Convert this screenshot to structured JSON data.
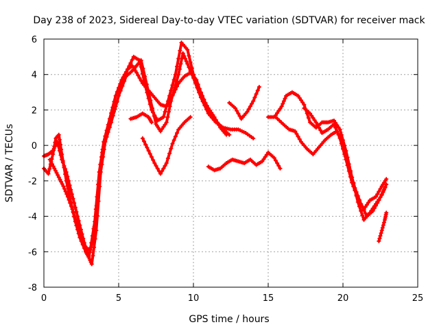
{
  "chart_data": {
    "type": "scatter",
    "title": "Day 238 of 2023, Sidereal Day-to-day VTEC variation (SDTVAR) for receiver mack",
    "xlabel": "GPS time / hours",
    "ylabel": "SDTVAR / TECUs",
    "xlim": [
      0,
      25
    ],
    "ylim": [
      -8,
      6
    ],
    "x_ticks": [
      0,
      5,
      10,
      15,
      20,
      25
    ],
    "y_ticks": [
      -8,
      -6,
      -4,
      -2,
      0,
      2,
      4,
      6
    ],
    "x_tick_labels": [
      "0",
      "5",
      "10",
      "15",
      "20",
      "25"
    ],
    "y_tick_labels": [
      "-8",
      "-6",
      "-4",
      "-2",
      "0",
      "2",
      "4",
      "6"
    ],
    "grid": true,
    "marker": "plus",
    "color": "#ff0000",
    "series": [
      {
        "x": [
          0.0,
          0.3,
          0.6,
          0.9,
          1.2,
          1.5,
          1.8,
          2.1,
          2.4,
          2.7,
          3.0,
          3.2,
          3.5,
          3.8,
          4.1,
          4.5,
          5.0,
          5.5,
          5.9,
          6.2,
          6.5,
          7.0,
          7.5,
          7.8,
          8.2,
          8.5,
          9.0,
          9.3,
          9.6,
          10.0,
          10.5,
          11.0,
          11.5,
          12.0,
          12.5,
          13.0,
          13.5,
          14.0
        ],
        "y": [
          -0.6,
          -0.5,
          -0.3,
          0.2,
          -0.8,
          -1.5,
          -2.5,
          -3.5,
          -4.5,
          -5.5,
          -6.3,
          -6.7,
          -4.8,
          -1.5,
          0.2,
          1.3,
          2.8,
          3.9,
          4.2,
          4.5,
          4.8,
          3.0,
          1.2,
          0.8,
          1.3,
          2.5,
          4.0,
          5.2,
          4.6,
          3.8,
          2.7,
          1.8,
          1.3,
          1.0,
          0.9,
          0.9,
          0.7,
          0.4
        ]
      },
      {
        "x": [
          0.0,
          0.3,
          0.6,
          0.8,
          1.0,
          1.2,
          1.5,
          1.8,
          2.1,
          2.4,
          2.8,
          3.0,
          3.3,
          3.6,
          3.9,
          4.3,
          4.8,
          5.2,
          5.6,
          6.0,
          6.4,
          6.8,
          7.2,
          7.6,
          8.0,
          8.4,
          8.8,
          9.2,
          9.6,
          10.0,
          10.4,
          10.8,
          11.2,
          11.6,
          12.0,
          12.4
        ],
        "y": [
          -1.3,
          -1.6,
          -0.5,
          0.4,
          0.6,
          -0.5,
          -2.0,
          -3.2,
          -4.3,
          -5.2,
          -6.0,
          -6.3,
          -5.2,
          -2.8,
          -0.4,
          1.0,
          2.2,
          3.4,
          4.3,
          5.0,
          4.8,
          3.3,
          2.0,
          1.4,
          1.6,
          2.8,
          4.0,
          5.8,
          5.4,
          4.0,
          3.2,
          2.4,
          1.7,
          1.3,
          0.9,
          0.6
        ]
      },
      {
        "x": [
          0.4,
          0.7,
          1.0,
          1.3,
          1.6,
          1.9,
          2.2,
          2.5,
          2.8,
          3.1,
          3.4,
          3.7,
          4.0,
          4.4,
          4.8,
          5.2,
          5.6,
          5.9,
          6.2,
          6.6,
          7.0,
          7.4,
          7.8,
          8.2,
          8.6,
          9.0,
          9.4,
          9.8,
          10.2,
          10.6,
          11.0,
          11.4,
          11.8,
          12.2
        ],
        "y": [
          -0.8,
          -1.3,
          -1.8,
          -2.3,
          -2.9,
          -3.6,
          -4.4,
          -5.2,
          -5.8,
          -5.9,
          -4.3,
          -1.5,
          0.2,
          1.5,
          2.8,
          3.7,
          4.3,
          4.5,
          4.1,
          3.5,
          3.1,
          2.7,
          2.3,
          2.2,
          2.8,
          3.5,
          3.9,
          4.1,
          3.7,
          2.7,
          2.1,
          1.6,
          1.0,
          0.6
        ]
      },
      {
        "x": [
          5.8,
          6.2,
          6.6,
          7.0,
          7.2
        ],
        "y": [
          1.5,
          1.6,
          1.8,
          1.6,
          1.3
        ]
      },
      {
        "x": [
          6.6,
          7.0,
          7.4,
          7.8,
          8.2,
          8.6,
          9.0,
          9.4,
          9.8
        ],
        "y": [
          0.4,
          -0.3,
          -1.0,
          -1.6,
          -1.0,
          0.1,
          0.9,
          1.3,
          1.6
        ]
      },
      {
        "x": [
          11.0,
          11.4,
          11.8,
          12.2,
          12.6,
          13.0,
          13.4,
          13.8,
          14.2,
          14.6,
          15.0,
          15.4,
          15.8
        ],
        "y": [
          -1.2,
          -1.4,
          -1.3,
          -1.0,
          -0.8,
          -0.9,
          -1.0,
          -0.8,
          -1.1,
          -0.9,
          -0.4,
          -0.7,
          -1.3
        ]
      },
      {
        "x": [
          12.4,
          12.8,
          13.2,
          13.6,
          14.0,
          14.4
        ],
        "y": [
          2.4,
          2.1,
          1.5,
          1.9,
          2.5,
          3.3
        ]
      },
      {
        "x": [
          15.0,
          15.5,
          16.0,
          16.4,
          16.8,
          17.2,
          17.6,
          18.0,
          18.4,
          18.8,
          19.2,
          19.6,
          20.0,
          20.4,
          20.8,
          21.2,
          21.6,
          22.0,
          22.4,
          22.8
        ],
        "y": [
          1.6,
          1.6,
          1.2,
          0.9,
          0.8,
          0.2,
          -0.2,
          -0.5,
          -0.1,
          0.3,
          0.6,
          0.8,
          0.1,
          -1.2,
          -2.4,
          -3.3,
          -4.0,
          -3.7,
          -3.1,
          -2.4
        ]
      },
      {
        "x": [
          15.5,
          15.9,
          16.2,
          16.6,
          17.0,
          17.4,
          17.8,
          18.2,
          18.6,
          19.0,
          19.4,
          19.8,
          20.2,
          20.6,
          21.0,
          21.4,
          21.8,
          22.2,
          22.6,
          22.9
        ],
        "y": [
          1.7,
          2.2,
          2.8,
          3.0,
          2.8,
          2.3,
          1.3,
          1.0,
          1.3,
          1.3,
          1.4,
          0.9,
          -0.3,
          -1.8,
          -3.2,
          -4.2,
          -3.8,
          -3.3,
          -2.8,
          -2.2
        ]
      },
      {
        "x": [
          17.4,
          17.8,
          18.2,
          18.6,
          19.0,
          19.4,
          19.8,
          20.2,
          20.6,
          21.0,
          21.4,
          21.8,
          22.2,
          22.6,
          22.9
        ],
        "y": [
          2.1,
          1.8,
          1.3,
          0.7,
          0.9,
          1.2,
          0.4,
          -0.8,
          -2.1,
          -3.0,
          -3.6,
          -3.1,
          -2.9,
          -2.3,
          -1.9
        ]
      },
      {
        "x": [
          22.4,
          22.6,
          22.8,
          22.9
        ],
        "y": [
          -5.4,
          -4.8,
          -4.2,
          -3.8
        ]
      }
    ]
  }
}
